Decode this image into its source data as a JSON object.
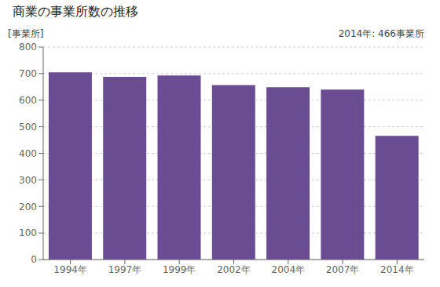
{
  "chart_data": {
    "type": "bar",
    "title": "商業の事業所数の推移",
    "ylabel": "[事業所]",
    "annotation": "2014年: 466事業所",
    "categories": [
      "1994年",
      "1997年",
      "1999年",
      "2002年",
      "2004年",
      "2007年",
      "2014年"
    ],
    "values": [
      705,
      688,
      693,
      657,
      649,
      640,
      466
    ],
    "color": "#6A4C93",
    "ylim": [
      0,
      800
    ],
    "yticks": [
      0,
      100,
      200,
      300,
      400,
      500,
      600,
      700,
      800
    ],
    "grid": true
  }
}
